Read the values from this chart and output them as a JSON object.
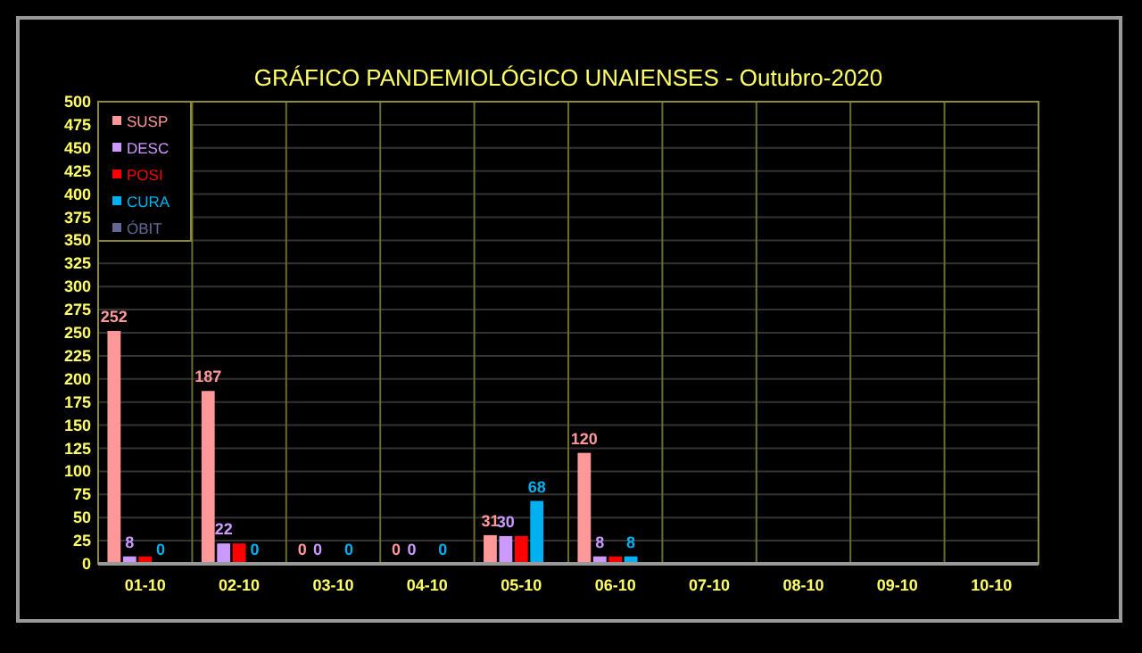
{
  "chart_data": {
    "type": "bar",
    "title": "GRÁFICO PANDEMIOLÓGICO UNAIENSES - Outubro-2020",
    "categories": [
      "01-10",
      "02-10",
      "03-10",
      "04-10",
      "05-10",
      "06-10",
      "07-10",
      "08-10",
      "09-10",
      "10-10"
    ],
    "series": [
      {
        "name": "SUSP",
        "color": "#ff9999",
        "values": [
          252,
          187,
          0,
          0,
          31,
          120,
          null,
          null,
          null,
          null
        ],
        "value_labels": [
          "252",
          "187",
          "0",
          "0",
          "31",
          "120",
          null,
          null,
          null,
          null
        ]
      },
      {
        "name": "DESC",
        "color": "#cc99ff",
        "values": [
          8,
          22,
          0,
          0,
          30,
          8,
          null,
          null,
          null,
          null
        ],
        "value_labels": [
          "8",
          "22",
          "0",
          "0",
          "30",
          "8",
          null,
          null,
          null,
          null
        ]
      },
      {
        "name": "POSI",
        "color": "#ff0000",
        "values": [
          8,
          22,
          0,
          0,
          30,
          8,
          null,
          null,
          null,
          null
        ]
      },
      {
        "name": "CURA",
        "color": "#00b0f0",
        "values": [
          0,
          0,
          0,
          0,
          68,
          8,
          null,
          null,
          null,
          null
        ],
        "value_labels": [
          "0",
          "0",
          "0",
          "0",
          "68",
          "8",
          null,
          null,
          null,
          null
        ]
      },
      {
        "name": "ÓBIT",
        "color": "#666699",
        "values": [
          null,
          null,
          null,
          null,
          null,
          null,
          null,
          null,
          null,
          null
        ]
      }
    ],
    "ylim": [
      0,
      500
    ],
    "yticks": [
      0,
      25,
      50,
      75,
      100,
      125,
      150,
      175,
      200,
      225,
      250,
      275,
      300,
      325,
      350,
      375,
      400,
      425,
      450,
      475,
      500
    ],
    "grid": "y",
    "legend": "top left"
  }
}
